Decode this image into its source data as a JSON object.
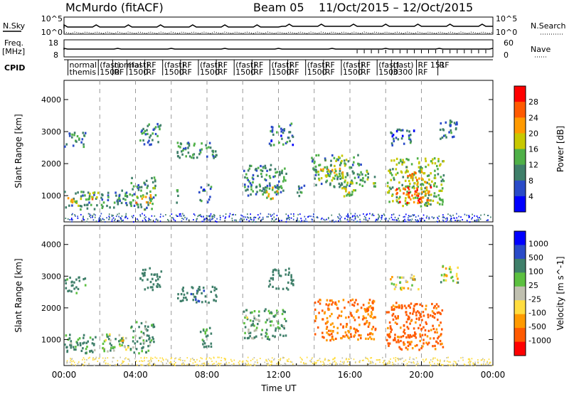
{
  "header": {
    "station": "McMurdo (fitACF)",
    "beam": "Beam 05",
    "date_range": "11/Oct/2015 – 12/Oct/2015"
  },
  "top_panels": {
    "noise": {
      "left_label": "N.Sky",
      "right_label": "N.Search",
      "left_ticks": [
        "10^5",
        "10^0"
      ],
      "right_ticks": [
        "10^5",
        "10^0"
      ]
    },
    "freq": {
      "left_label_1": "Freq.",
      "left_label_2": "[MHz]",
      "right_label": "Nave",
      "left_ticks": [
        "18",
        "8"
      ],
      "right_ticks": [
        "60",
        "0"
      ]
    },
    "cpid": {
      "label": "CPID",
      "entries": [
        {
          "t": 0.3,
          "line1": "normal",
          "line2": "themis"
        },
        {
          "t": 2.0,
          "line1": "(fast)",
          "line2": "1500"
        },
        {
          "t": 2.8,
          "line1": "normal",
          "line2": "RF"
        },
        {
          "t": 3.6,
          "line1": "(fast)",
          "line2": "1500"
        },
        {
          "t": 4.6,
          "line1": "RF",
          "line2": "RF"
        },
        {
          "t": 5.6,
          "line1": "(fast)",
          "line2": "1500"
        },
        {
          "t": 6.6,
          "line1": "RF",
          "line2": "RF"
        },
        {
          "t": 7.6,
          "line1": "(fast)",
          "line2": "1500"
        },
        {
          "t": 8.6,
          "line1": "RF",
          "line2": "RF"
        },
        {
          "t": 9.6,
          "line1": "(fast)",
          "line2": "1500"
        },
        {
          "t": 10.6,
          "line1": "RF",
          "line2": "RF"
        },
        {
          "t": 11.6,
          "line1": "(fast)",
          "line2": "1500"
        },
        {
          "t": 12.6,
          "line1": "RF",
          "line2": "RF"
        },
        {
          "t": 13.6,
          "line1": "(fast)",
          "line2": "1500"
        },
        {
          "t": 14.6,
          "line1": "RF",
          "line2": "RF"
        },
        {
          "t": 15.6,
          "line1": "(fast)",
          "line2": "1500"
        },
        {
          "t": 16.6,
          "line1": "RF",
          "line2": "RF"
        },
        {
          "t": 17.6,
          "line1": "(fast)",
          "line2": "1500"
        },
        {
          "t": 18.4,
          "line1": "(fast)",
          "line2": "3300"
        },
        {
          "t": 19.8,
          "line1": "RF 151",
          "line2": "RF"
        },
        {
          "t": 21.0,
          "line1": "RF",
          "line2": ""
        }
      ]
    }
  },
  "chart_data": [
    {
      "type": "heatmap",
      "title": "",
      "xlabel": "",
      "ylabel": "Slant Range [km]",
      "xlim": [
        0,
        24
      ],
      "ylim": [
        180,
        4600
      ],
      "yticks": [
        1000,
        2000,
        3000,
        4000
      ],
      "colorbar": {
        "label": "Power [dB]",
        "range": [
          0,
          32
        ],
        "ticks": [
          "4",
          "8",
          "12",
          "16",
          "20",
          "24",
          "28"
        ],
        "colors": [
          "#0000ff",
          "#2a4bc8",
          "#3f7f6a",
          "#4fb048",
          "#c8c800",
          "#ff9a00",
          "#ff5a00",
          "#ff0000"
        ]
      },
      "patches": [
        {
          "t0": 0.0,
          "t1": 1.8,
          "r0": 600,
          "r1": 1200,
          "v": 12
        },
        {
          "t0": 0.0,
          "t1": 1.2,
          "r0": 2500,
          "r1": 3000,
          "v": 10
        },
        {
          "t0": 0.1,
          "t1": 0.5,
          "r0": 800,
          "r1": 1050,
          "v": 20
        },
        {
          "t0": 1.5,
          "t1": 2.0,
          "r0": 850,
          "r1": 1150,
          "v": 22
        },
        {
          "t0": 2.0,
          "t1": 3.7,
          "r0": 650,
          "r1": 1200,
          "v": 10
        },
        {
          "t0": 3.7,
          "t1": 5.1,
          "r0": 600,
          "r1": 1600,
          "v": 12
        },
        {
          "t0": 4.0,
          "t1": 4.9,
          "r0": 800,
          "r1": 1100,
          "v": 20
        },
        {
          "t0": 4.2,
          "t1": 5.4,
          "r0": 2600,
          "r1": 3300,
          "v": 9
        },
        {
          "t0": 6.2,
          "t1": 6.4,
          "r0": 800,
          "r1": 1300,
          "v": 10
        },
        {
          "t0": 6.3,
          "t1": 8.5,
          "r0": 2200,
          "r1": 2700,
          "v": 11
        },
        {
          "t0": 7.5,
          "t1": 8.2,
          "r0": 800,
          "r1": 1400,
          "v": 8
        },
        {
          "t0": 10.0,
          "t1": 12.4,
          "r0": 1000,
          "r1": 2000,
          "v": 10
        },
        {
          "t0": 11.2,
          "t1": 11.9,
          "r0": 900,
          "r1": 1300,
          "v": 18
        },
        {
          "t0": 11.4,
          "t1": 12.8,
          "r0": 2600,
          "r1": 3300,
          "v": 8
        },
        {
          "t0": 13.0,
          "t1": 13.4,
          "r0": 1000,
          "r1": 1500,
          "v": 10
        },
        {
          "t0": 13.8,
          "t1": 16.6,
          "r0": 1300,
          "r1": 2300,
          "v": 12
        },
        {
          "t0": 14.2,
          "t1": 15.6,
          "r0": 1500,
          "r1": 1900,
          "v": 18
        },
        {
          "t0": 15.4,
          "t1": 16.3,
          "r0": 1000,
          "r1": 1500,
          "v": 16
        },
        {
          "t0": 16.6,
          "t1": 17.4,
          "r0": 1300,
          "r1": 1900,
          "v": 13
        },
        {
          "t0": 18.0,
          "t1": 21.2,
          "r0": 700,
          "r1": 2200,
          "v": 15
        },
        {
          "t0": 18.5,
          "t1": 20.5,
          "r0": 800,
          "r1": 1300,
          "v": 26
        },
        {
          "t0": 19.0,
          "t1": 20.2,
          "r0": 1400,
          "r1": 1800,
          "v": 20
        },
        {
          "t0": 18.2,
          "t1": 19.6,
          "r0": 2600,
          "r1": 3100,
          "v": 8
        },
        {
          "t0": 21.0,
          "t1": 22.0,
          "r0": 2800,
          "r1": 3400,
          "v": 10
        }
      ]
    },
    {
      "type": "heatmap",
      "title": "",
      "xlabel": "Time UT",
      "ylabel": "Slant Range [km]",
      "xlim": [
        0,
        24
      ],
      "ylim": [
        180,
        4600
      ],
      "yticks": [
        1000,
        2000,
        3000,
        4000
      ],
      "xticks": [
        "00:00",
        "04:00",
        "08:00",
        "12:00",
        "16:00",
        "20:00",
        "00:00"
      ],
      "colorbar": {
        "label": "Velocity [m s^-1]",
        "range": [
          -1000,
          1000
        ],
        "ticks": [
          "1000",
          "500",
          "100",
          "25",
          "-25",
          "-100",
          "-500",
          "-1000"
        ],
        "colors": [
          "#0000ff",
          "#2a4bc8",
          "#3f7f6a",
          "#5cc040",
          "#c0c0b0",
          "#ffdd40",
          "#ff9a00",
          "#ff5a00",
          "#ff0000"
        ]
      },
      "patches": [
        {
          "t0": 0.0,
          "t1": 1.8,
          "r0": 600,
          "r1": 1200,
          "v": 150
        },
        {
          "t0": 0.0,
          "t1": 1.2,
          "r0": 2500,
          "r1": 3000,
          "v": 200
        },
        {
          "t0": 2.0,
          "t1": 3.7,
          "r0": 650,
          "r1": 1200,
          "v": 100
        },
        {
          "t0": 3.0,
          "t1": 3.6,
          "r0": 800,
          "r1": 1100,
          "v": 0
        },
        {
          "t0": 3.7,
          "t1": 5.1,
          "r0": 600,
          "r1": 1600,
          "v": 150
        },
        {
          "t0": 4.2,
          "t1": 5.4,
          "r0": 2600,
          "r1": 3300,
          "v": 300
        },
        {
          "t0": 6.3,
          "t1": 8.5,
          "r0": 2200,
          "r1": 2700,
          "v": 400
        },
        {
          "t0": 7.5,
          "t1": 8.2,
          "r0": 800,
          "r1": 1400,
          "v": 200
        },
        {
          "t0": 10.0,
          "t1": 12.4,
          "r0": 1000,
          "r1": 2000,
          "v": 120
        },
        {
          "t0": 11.4,
          "t1": 12.8,
          "r0": 2600,
          "r1": 3300,
          "v": 300
        },
        {
          "t0": 14.0,
          "t1": 17.4,
          "r0": 1000,
          "r1": 2300,
          "v": -500
        },
        {
          "t0": 18.0,
          "t1": 21.2,
          "r0": 700,
          "r1": 2200,
          "v": -600
        },
        {
          "t0": 18.2,
          "t1": 19.8,
          "r0": 2600,
          "r1": 3100,
          "v": 0
        },
        {
          "t0": 21.0,
          "t1": 22.0,
          "r0": 2800,
          "r1": 3400,
          "v": 0
        }
      ]
    }
  ]
}
